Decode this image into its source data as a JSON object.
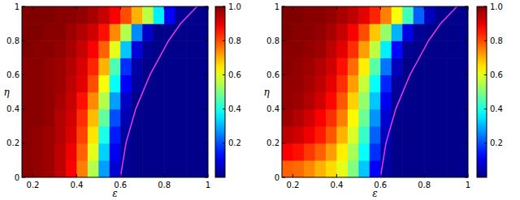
{
  "chart_data": [
    {
      "type": "heatmap",
      "x_label": "ε",
      "y_label": "η",
      "xlim": [
        0.15,
        1
      ],
      "ylim": [
        0,
        1
      ],
      "xticks": [
        0.2,
        0.4,
        0.6,
        0.8,
        1
      ],
      "yticks": [
        0,
        0.2,
        0.4,
        0.6,
        0.8,
        1
      ],
      "cells": {
        "x": [
          0.15,
          0.2,
          0.25,
          0.3,
          0.35,
          0.4,
          0.45,
          0.5,
          0.55,
          0.6,
          0.65,
          0.7,
          0.75,
          0.8,
          0.85,
          0.9,
          0.95,
          1.0
        ],
        "y": [
          0,
          0.1,
          0.2,
          0.3,
          0.4,
          0.5,
          0.6,
          0.7,
          0.8,
          0.9,
          1.0
        ],
        "values": [
          [
            0.99,
            0.98,
            0.97,
            0.94,
            0.88,
            0.75,
            0.55,
            0.28,
            0.08,
            0.02,
            0.01,
            0.01,
            0.01,
            0.01,
            0.01,
            0.01,
            0.01
          ],
          [
            0.99,
            0.98,
            0.97,
            0.94,
            0.89,
            0.78,
            0.6,
            0.33,
            0.11,
            0.02,
            0.01,
            0.01,
            0.01,
            0.01,
            0.01,
            0.01,
            0.01
          ],
          [
            0.99,
            0.98,
            0.97,
            0.95,
            0.91,
            0.81,
            0.65,
            0.4,
            0.15,
            0.03,
            0.01,
            0.01,
            0.01,
            0.01,
            0.01,
            0.01,
            0.01
          ],
          [
            0.99,
            0.99,
            0.98,
            0.95,
            0.92,
            0.83,
            0.69,
            0.47,
            0.2,
            0.05,
            0.01,
            0.01,
            0.01,
            0.01,
            0.01,
            0.01,
            0.01
          ],
          [
            0.99,
            0.99,
            0.98,
            0.96,
            0.93,
            0.86,
            0.74,
            0.55,
            0.28,
            0.07,
            0.01,
            0.01,
            0.01,
            0.01,
            0.01,
            0.01,
            0.01
          ],
          [
            0.99,
            0.99,
            0.98,
            0.97,
            0.94,
            0.9,
            0.8,
            0.62,
            0.38,
            0.12,
            0.03,
            0.01,
            0.01,
            0.01,
            0.01,
            0.01,
            0.01
          ],
          [
            0.99,
            0.99,
            0.98,
            0.97,
            0.95,
            0.91,
            0.84,
            0.7,
            0.45,
            0.17,
            0.04,
            0.01,
            0.01,
            0.01,
            0.01,
            0.01,
            0.01
          ],
          [
            1,
            0.99,
            0.99,
            0.98,
            0.96,
            0.93,
            0.88,
            0.78,
            0.6,
            0.32,
            0.09,
            0.02,
            0.01,
            0.01,
            0.01,
            0.01,
            0.01
          ],
          [
            1,
            1,
            0.99,
            0.99,
            0.97,
            0.95,
            0.92,
            0.86,
            0.74,
            0.55,
            0.26,
            0.07,
            0.01,
            0.01,
            0.01,
            0.01,
            0.01
          ],
          [
            1,
            1,
            1,
            0.99,
            0.99,
            0.98,
            0.96,
            0.93,
            0.88,
            0.8,
            0.7,
            0.56,
            0.36,
            0.12,
            0.02,
            0.01,
            0.01
          ]
        ]
      },
      "colorbar": {
        "range": [
          0,
          1
        ],
        "ticks": [
          0.2,
          0.4,
          0.6,
          0.8,
          {
            "value": 1,
            "label": "1.0"
          }
        ]
      },
      "series": [
        {
          "type": "line",
          "color": "#e03ce0",
          "x": [
            0.6,
            0.625,
            0.67,
            0.735,
            0.82,
            0.875,
            0.95
          ],
          "values": [
            0,
            0.2,
            0.4,
            0.6,
            0.8,
            0.9,
            1.0
          ]
        }
      ]
    },
    {
      "type": "heatmap",
      "x_label": "ε",
      "y_label": "η",
      "xlim": [
        0.15,
        1
      ],
      "ylim": [
        0,
        1
      ],
      "xticks": [
        0.2,
        0.4,
        0.6,
        0.8,
        1
      ],
      "yticks": [
        0,
        0.2,
        0.4,
        0.6,
        0.8,
        1
      ],
      "cells": {
        "x": [
          0.15,
          0.2,
          0.25,
          0.3,
          0.35,
          0.4,
          0.45,
          0.5,
          0.55,
          0.6,
          0.65,
          0.7,
          0.75,
          0.8,
          0.85,
          0.9,
          0.95,
          1.0
        ],
        "y": [
          0,
          0.1,
          0.2,
          0.3,
          0.4,
          0.5,
          0.6,
          0.7,
          0.8,
          0.9,
          1.0
        ],
        "values": [
          [
            0.78,
            0.77,
            0.74,
            0.7,
            0.66,
            0.6,
            0.5,
            0.32,
            0.12,
            0.03,
            0.01,
            0.01,
            0.01,
            0.01,
            0.01,
            0.01,
            0.01
          ],
          [
            0.88,
            0.86,
            0.82,
            0.78,
            0.72,
            0.64,
            0.54,
            0.38,
            0.17,
            0.04,
            0.01,
            0.01,
            0.01,
            0.01,
            0.01,
            0.01,
            0.01
          ],
          [
            0.94,
            0.92,
            0.89,
            0.85,
            0.79,
            0.7,
            0.59,
            0.43,
            0.22,
            0.06,
            0.01,
            0.01,
            0.01,
            0.01,
            0.01,
            0.01,
            0.01
          ],
          [
            0.97,
            0.95,
            0.92,
            0.88,
            0.83,
            0.75,
            0.63,
            0.48,
            0.27,
            0.08,
            0.01,
            0.01,
            0.01,
            0.01,
            0.01,
            0.01,
            0.01
          ],
          [
            0.98,
            0.97,
            0.95,
            0.92,
            0.87,
            0.79,
            0.67,
            0.52,
            0.32,
            0.11,
            0.02,
            0.01,
            0.01,
            0.01,
            0.01,
            0.01,
            0.01
          ],
          [
            0.98,
            0.98,
            0.96,
            0.94,
            0.9,
            0.83,
            0.72,
            0.57,
            0.38,
            0.16,
            0.03,
            0.01,
            0.01,
            0.01,
            0.01,
            0.01,
            0.01
          ],
          [
            0.99,
            0.98,
            0.97,
            0.95,
            0.92,
            0.86,
            0.77,
            0.64,
            0.46,
            0.24,
            0.06,
            0.01,
            0.01,
            0.01,
            0.01,
            0.01,
            0.01
          ],
          [
            0.99,
            0.99,
            0.98,
            0.97,
            0.94,
            0.9,
            0.83,
            0.72,
            0.56,
            0.36,
            0.13,
            0.02,
            0.01,
            0.01,
            0.01,
            0.01,
            0.01
          ],
          [
            1,
            0.99,
            0.99,
            0.98,
            0.96,
            0.93,
            0.88,
            0.8,
            0.68,
            0.52,
            0.3,
            0.1,
            0.02,
            0.01,
            0.01,
            0.01,
            0.01
          ],
          [
            1,
            1,
            0.99,
            0.99,
            0.98,
            0.96,
            0.94,
            0.9,
            0.84,
            0.75,
            0.62,
            0.44,
            0.22,
            0.06,
            0.01,
            0.01,
            0.01
          ]
        ]
      },
      "colorbar": {
        "range": [
          0,
          1
        ],
        "ticks": [
          0.2,
          0.4,
          0.6,
          0.8,
          {
            "value": 1,
            "label": "1.0"
          }
        ]
      },
      "series": [
        {
          "type": "line",
          "color": "#e03ce0",
          "x": [
            0.6,
            0.625,
            0.67,
            0.735,
            0.82,
            0.875,
            0.95
          ],
          "values": [
            0,
            0.2,
            0.4,
            0.6,
            0.8,
            0.9,
            1.0
          ]
        }
      ]
    }
  ]
}
